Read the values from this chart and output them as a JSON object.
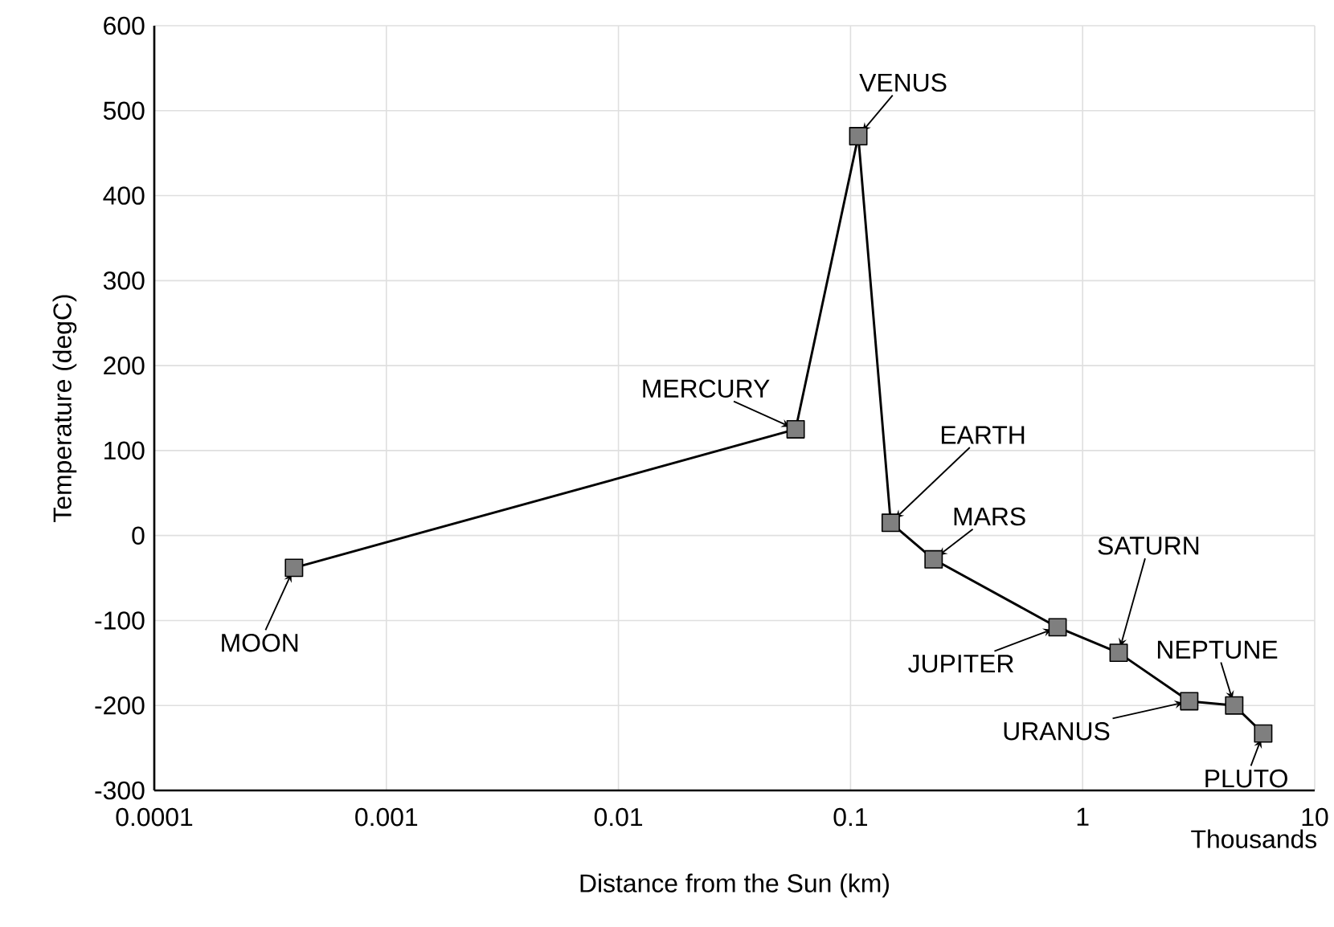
{
  "chart_data": {
    "type": "line",
    "log": "x",
    "xlabel": "Distance from the Sun (km)",
    "ylabel": "Temperature (degC)",
    "x": [
      0.0004,
      0.058,
      0.108,
      0.149,
      0.228,
      0.78,
      1.43,
      2.88,
      4.5,
      6.0
    ],
    "values": [
      -38,
      125,
      470,
      15,
      -28,
      -108,
      -138,
      -195,
      -200,
      -233
    ],
    "color": "#7f7f7f",
    "marker": "square",
    "line_style": "solid",
    "xlim": [
      0.0001,
      10
    ],
    "xticks": [
      0.0001,
      0.001,
      0.01,
      0.1,
      1,
      10
    ],
    "ylim": [
      -300,
      600
    ],
    "yticks": [
      -300,
      -200,
      -100,
      0,
      100,
      200,
      300,
      400,
      500,
      600
    ],
    "grid": true,
    "annotations": [
      {
        "text": "MOON",
        "x": 0.0004,
        "y": -38
      },
      {
        "text": "MERCURY",
        "x": 0.058,
        "y": 125
      },
      {
        "text": "VENUS",
        "x": 0.108,
        "y": 470
      },
      {
        "text": "EARTH",
        "x": 0.149,
        "y": 15
      },
      {
        "text": "MARS",
        "x": 0.228,
        "y": -28
      },
      {
        "text": "JUPITER",
        "x": 0.78,
        "y": -108
      },
      {
        "text": "SATURN",
        "x": 1.43,
        "y": -138
      },
      {
        "text": "URANUS",
        "x": 2.88,
        "y": -195
      },
      {
        "text": "NEPTUNE",
        "x": 4.5,
        "y": -200
      },
      {
        "text": "PLUTO",
        "x": 6.0,
        "y": -233
      },
      "Thousands"
    ]
  }
}
